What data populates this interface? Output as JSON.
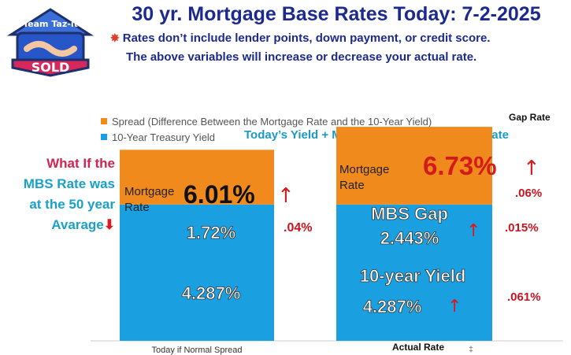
{
  "header": {
    "title": "30 yr. Mortgage Base Rates Today: 7-2-2025",
    "note_line1": "Rates don’t include lender points, down payment, or credit score.",
    "note_line2": "The above variables will increase or decrease your actual rate.",
    "burst_icon": "explosion-icon"
  },
  "logo": {
    "top_text": "Team Taz-it",
    "badge_text": "SOLD",
    "icon": "handshake-house-icon"
  },
  "side_note": {
    "line1": "What If the",
    "line2": "MBS Rate was",
    "line3": "at the 50 year",
    "line4": "Avarage"
  },
  "annotations": {
    "gap_rate_title": "Gap Rate",
    "equation": "Today’s  Yield +  MBS Gap Rate = Mortgage Rate"
  },
  "chart_data": {
    "type": "bar",
    "stacked": true,
    "legend": [
      {
        "name": "Spread (Difference Between the Mortgage Rate and the 10-Year Yield)",
        "color": "#f08a1c"
      },
      {
        "name": "10-Year Treasury Yield",
        "color": "#1aa0e0"
      }
    ],
    "categories": [
      "Today if Normal Spread",
      "Actual Rate"
    ],
    "series": [
      {
        "name": "10-Year Treasury Yield",
        "values": [
          4.287,
          4.287
        ],
        "color": "#1aa0e0"
      },
      {
        "name": "Spread",
        "values": [
          1.72,
          2.443
        ],
        "color": "#f08a1c"
      }
    ],
    "bars": [
      {
        "mortgage_label": "Mortgage Rate",
        "total_label": "6.01%",
        "spread_label": "1.72%",
        "yield_label": "4.287%",
        "changes": [
          ".04%"
        ]
      },
      {
        "mortgage_label": "Mortgage Rate",
        "total_label": "6.73%",
        "spread_title": "MBS Gap",
        "spread_label": "2.443%",
        "yield_title": "10-year Yield",
        "yield_label": "4.287%",
        "changes": [
          ".06%",
          ".015%",
          ".061%"
        ]
      }
    ],
    "extra_mark": "‡",
    "ylim": [
      0,
      7.0
    ]
  }
}
